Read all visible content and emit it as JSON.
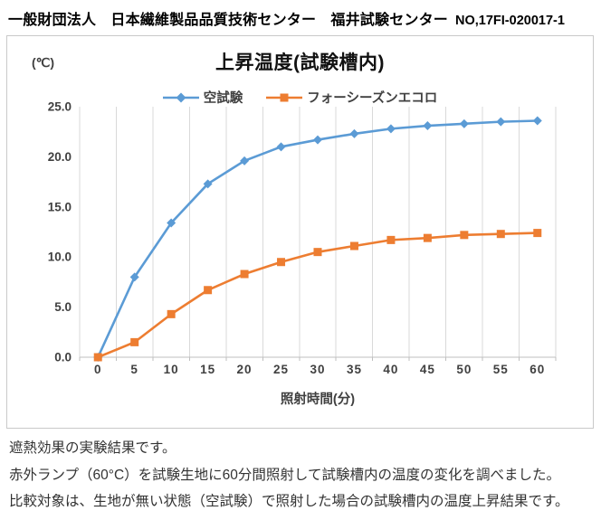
{
  "header": {
    "org": "一般財団法人　日本繊維製品品質技術センター　福井試験センター",
    "report_no": "NO,17FI-020017-1"
  },
  "chart": {
    "title": "上昇温度(試験槽内)",
    "unit_label": "(℃)",
    "x_axis_title": "照射時間(分)",
    "colors": {
      "gridline": "#d9d9d9",
      "axis_line": "#bfbfbf",
      "axis_text": "#404040",
      "blank_test_blue": "#5b9bd5",
      "four_seasons_orange": "#ed7d31"
    }
  },
  "chart_data": {
    "type": "line",
    "title": "上昇温度(試験槽内)",
    "xlabel": "照射時間(分)",
    "ylabel": "(℃)",
    "categories": [
      0,
      5,
      10,
      15,
      20,
      25,
      30,
      35,
      40,
      45,
      50,
      55,
      60
    ],
    "series": [
      {
        "id": "blank-test",
        "name": "空試験",
        "color": "#5b9bd5",
        "marker": "diamond",
        "values": [
          0.0,
          8.0,
          13.4,
          17.3,
          19.6,
          21.0,
          21.7,
          22.3,
          22.8,
          23.1,
          23.3,
          23.5,
          23.6
        ]
      },
      {
        "id": "four-seasons-ecolo",
        "name": "フォーシーズンエコロ",
        "color": "#ed7d31",
        "marker": "square",
        "values": [
          0.0,
          1.5,
          4.3,
          6.7,
          8.3,
          9.5,
          10.5,
          11.1,
          11.7,
          11.9,
          12.2,
          12.3,
          12.4
        ]
      }
    ],
    "ylim": [
      0,
      25
    ],
    "y_ticks": [
      "0.0",
      "5.0",
      "10.0",
      "15.0",
      "20.0",
      "25.0"
    ],
    "grid": "vertical-only",
    "legend_position": "top-center"
  },
  "description": {
    "lines": [
      "遮熱効果の実験結果です。",
      "赤外ランプ（60°C）を試験生地に60分間照射して試験槽内の温度の変化を調べました。",
      "比較対象は、生地が無い状態（空試験）で照射した場合の試験槽内の温度上昇結果です。"
    ]
  }
}
